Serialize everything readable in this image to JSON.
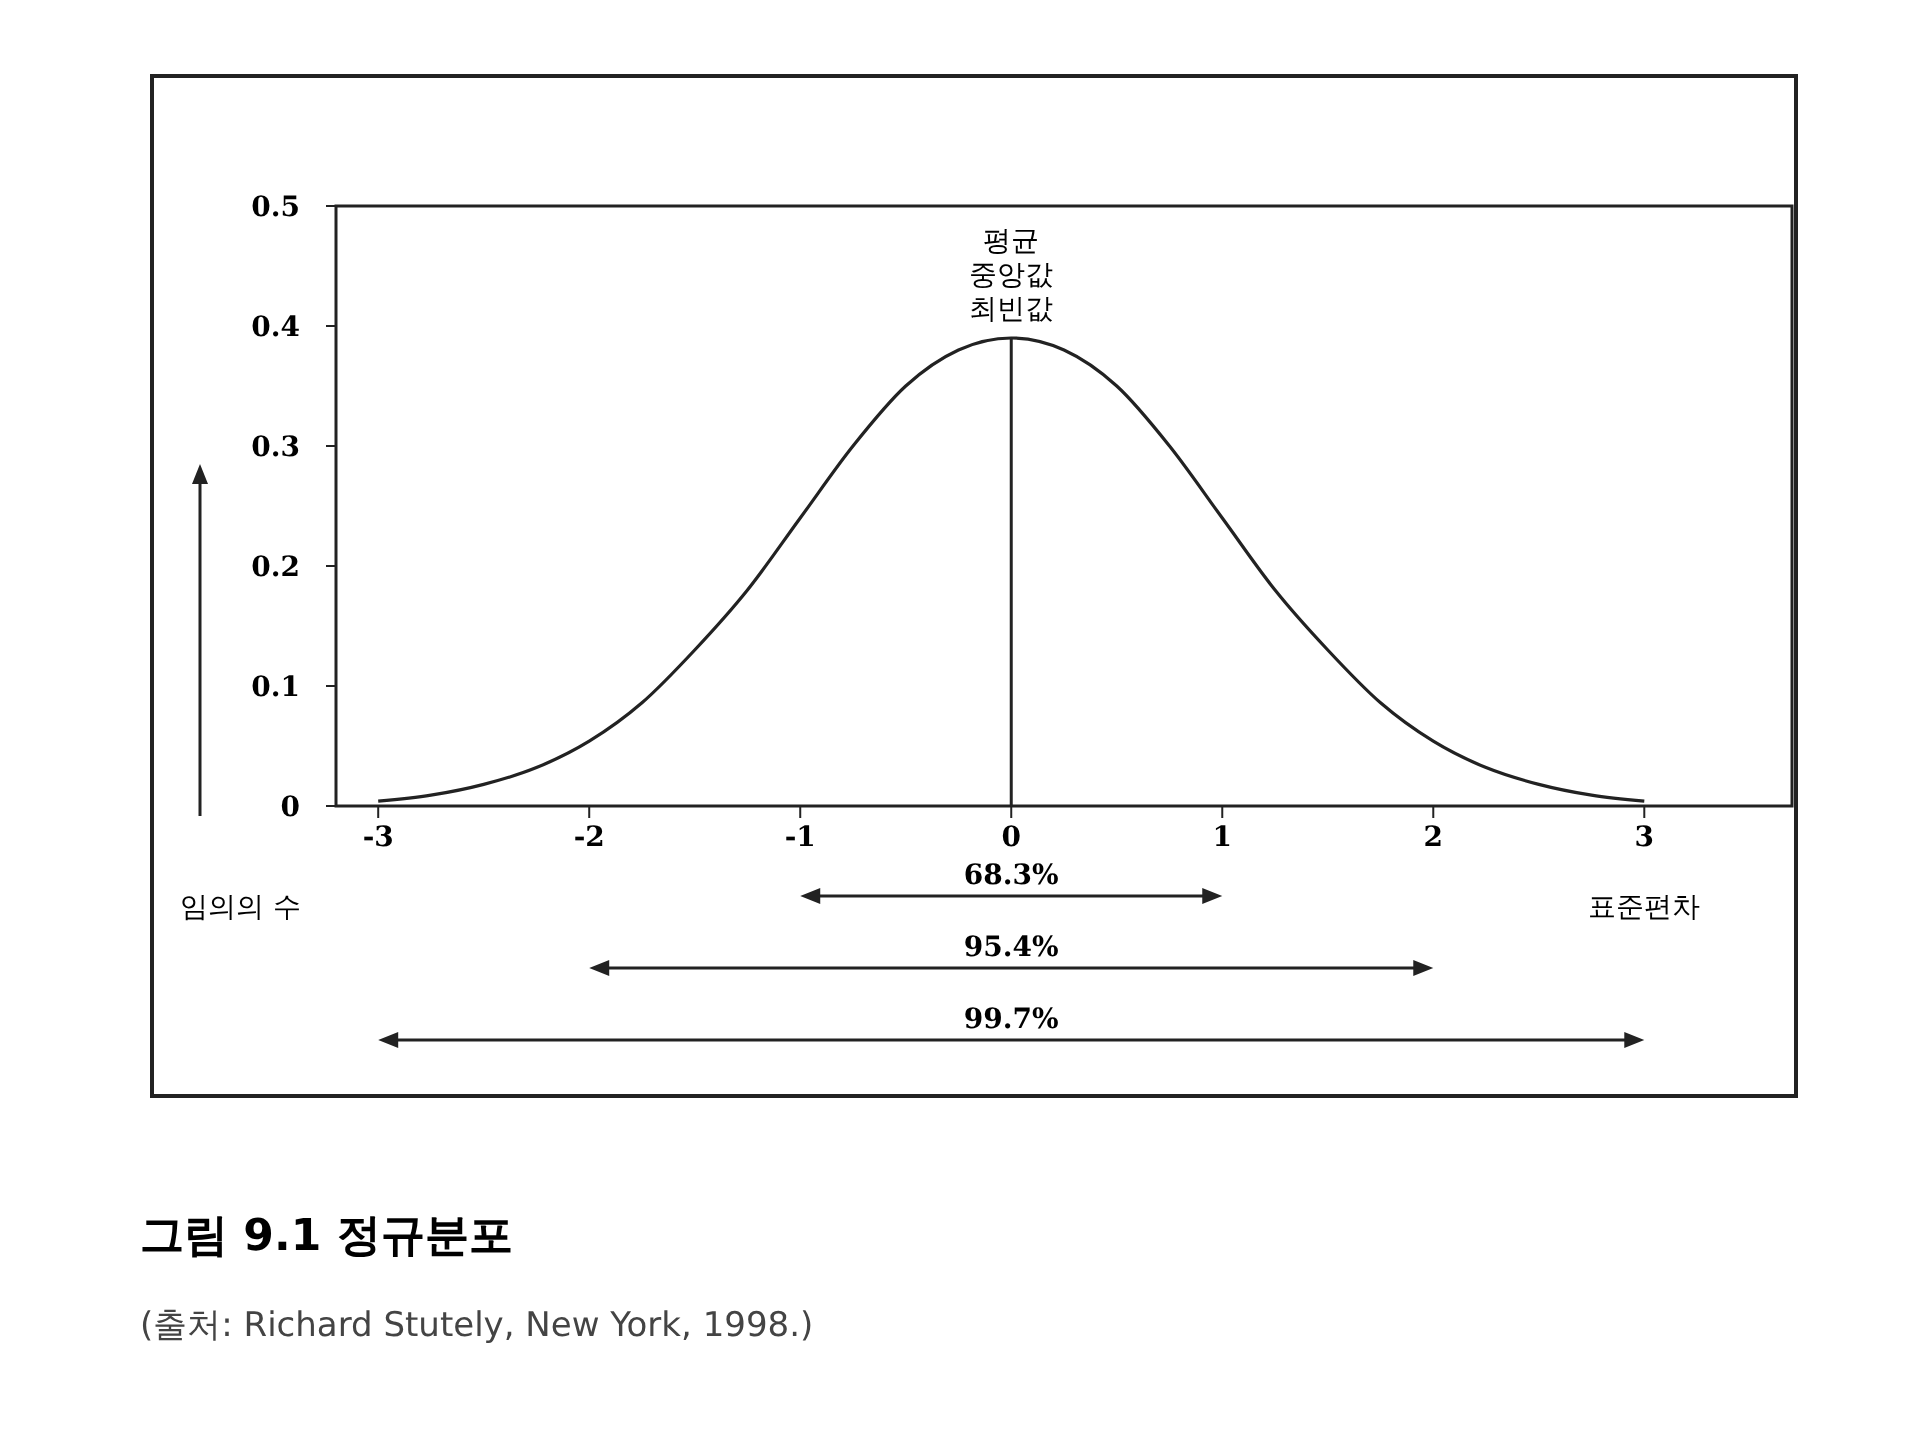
{
  "chart_data": {
    "type": "line",
    "title": "그림 9.1 정규분포",
    "xlabel": "표준편차",
    "ylabel": "임의의 수",
    "x": [
      -3,
      -2.75,
      -2.5,
      -2.25,
      -2,
      -1.75,
      -1.5,
      -1.25,
      -1,
      -0.75,
      -0.5,
      -0.25,
      0,
      0.25,
      0.5,
      0.75,
      1,
      1.25,
      1.5,
      1.75,
      2,
      2.25,
      2.5,
      2.75,
      3
    ],
    "series": [
      {
        "color": "#222222",
        "values": [
          0.004,
          0.009,
          0.018,
          0.032,
          0.054,
          0.086,
          0.13,
          0.18,
          0.24,
          0.3,
          0.35,
          0.38,
          0.39,
          0.38,
          0.35,
          0.3,
          0.24,
          0.18,
          0.13,
          0.086,
          0.054,
          0.032,
          0.018,
          0.009,
          0.004
        ]
      }
    ],
    "xlim": [
      -3.2,
      3.7
    ],
    "ylim": [
      0,
      0.5
    ],
    "xticks": [
      -3,
      -2,
      -1,
      0,
      1,
      2,
      3
    ],
    "yticks": [
      0,
      0.1,
      0.2,
      0.3,
      0.4,
      0.5
    ],
    "grid": false,
    "marker": "none",
    "line_style": "solid",
    "ref_lines": [
      {
        "axis": "x",
        "value": 0,
        "label": "평균\n중앙값\n최빈값"
      }
    ],
    "annotations": [
      "68.3%",
      "95.4%",
      "99.7%",
      "(출처: Richard Stutely, New York, 1998.)"
    ]
  }
}
